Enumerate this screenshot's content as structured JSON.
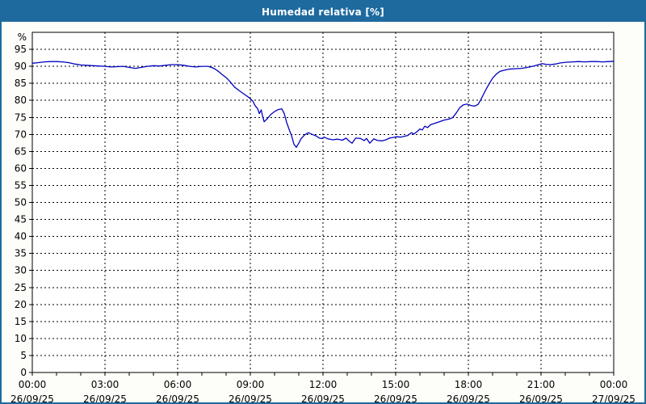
{
  "window": {
    "title": "Humedad relativa [%]"
  },
  "colors": {
    "header_bg": "#1e6a9f",
    "frame_border": "#1e6a9f",
    "panel_bg": "#fdfdf9",
    "plot_bg": "#ffffff",
    "grid": "#000000",
    "text": "#000000",
    "title_text": "#ffffff",
    "line": "#0000c0"
  },
  "chart_data": {
    "type": "line",
    "title": "Humedad relativa [%]",
    "ylabel": "%",
    "ylim": [
      0,
      100
    ],
    "ytick_step": 5,
    "grid": "dashed",
    "legend": "none",
    "x_hours_range": [
      0,
      24
    ],
    "yticks": [
      95,
      90,
      85,
      80,
      75,
      70,
      65,
      60,
      55,
      50,
      45,
      40,
      35,
      30,
      25,
      20,
      15,
      10,
      5,
      0
    ],
    "xticks": [
      {
        "hour": 0,
        "time": "00:00",
        "date": "26/09/25"
      },
      {
        "hour": 3,
        "time": "03:00",
        "date": "26/09/25"
      },
      {
        "hour": 6,
        "time": "06:00",
        "date": "26/09/25"
      },
      {
        "hour": 9,
        "time": "09:00",
        "date": "26/09/25"
      },
      {
        "hour": 12,
        "time": "12:00",
        "date": "26/09/25"
      },
      {
        "hour": 15,
        "time": "15:00",
        "date": "26/09/25"
      },
      {
        "hour": 18,
        "time": "18:00",
        "date": "26/09/25"
      },
      {
        "hour": 21,
        "time": "21:00",
        "date": "26/09/25"
      },
      {
        "hour": 24,
        "time": "00:00",
        "date": "27/09/25"
      }
    ],
    "series": [
      {
        "name": "Humedad relativa",
        "color": "#0000c0",
        "points": [
          [
            0,
            90.9
          ],
          [
            0.25,
            91.1
          ],
          [
            0.5,
            91.3
          ],
          [
            0.75,
            91.4
          ],
          [
            1,
            91.4
          ],
          [
            1.25,
            91.3
          ],
          [
            1.5,
            91.1
          ],
          [
            1.75,
            90.7
          ],
          [
            2,
            90.4
          ],
          [
            2.25,
            90.3
          ],
          [
            2.5,
            90.2
          ],
          [
            2.75,
            90.1
          ],
          [
            3,
            90
          ],
          [
            3.25,
            89.8
          ],
          [
            3.5,
            89.9
          ],
          [
            3.75,
            90
          ],
          [
            4,
            89.7
          ],
          [
            4.25,
            89.4
          ],
          [
            4.5,
            89.7
          ],
          [
            4.75,
            90
          ],
          [
            5,
            90.2
          ],
          [
            5.25,
            90.1
          ],
          [
            5.5,
            90.3
          ],
          [
            5.75,
            90.5
          ],
          [
            6,
            90.5
          ],
          [
            6.25,
            90.3
          ],
          [
            6.5,
            90
          ],
          [
            6.75,
            89.8
          ],
          [
            7,
            90
          ],
          [
            7.25,
            90
          ],
          [
            7.4,
            89.7
          ],
          [
            7.55,
            89.2
          ],
          [
            7.7,
            88.4
          ],
          [
            7.85,
            87.5
          ],
          [
            8,
            86.7
          ],
          [
            8.15,
            85.6
          ],
          [
            8.35,
            83.9
          ],
          [
            8.55,
            82.8
          ],
          [
            8.75,
            81.8
          ],
          [
            8.95,
            80.8
          ],
          [
            9.1,
            79.8
          ],
          [
            9.2,
            78.4
          ],
          [
            9.3,
            77.6
          ],
          [
            9.37,
            76.1
          ],
          [
            9.45,
            77.2
          ],
          [
            9.5,
            75.5
          ],
          [
            9.57,
            73.7
          ],
          [
            9.7,
            74.6
          ],
          [
            9.85,
            75.9
          ],
          [
            10,
            76.7
          ],
          [
            10.15,
            77.3
          ],
          [
            10.3,
            77.5
          ],
          [
            10.4,
            76.1
          ],
          [
            10.5,
            73.5
          ],
          [
            10.6,
            71.5
          ],
          [
            10.7,
            69.7
          ],
          [
            10.8,
            67.1
          ],
          [
            10.9,
            66.2
          ],
          [
            11,
            67.4
          ],
          [
            11.1,
            68.8
          ],
          [
            11.25,
            69.9
          ],
          [
            11.4,
            70.5
          ],
          [
            11.55,
            70
          ],
          [
            11.7,
            69.6
          ],
          [
            11.85,
            68.9
          ],
          [
            11.95,
            68.8
          ],
          [
            12.05,
            69.2
          ],
          [
            12.2,
            68.7
          ],
          [
            12.4,
            68.4
          ],
          [
            12.6,
            68.6
          ],
          [
            12.8,
            68.3
          ],
          [
            12.95,
            68.9
          ],
          [
            13.1,
            67.9
          ],
          [
            13.2,
            67.4
          ],
          [
            13.35,
            68.9
          ],
          [
            13.55,
            68.8
          ],
          [
            13.7,
            68.2
          ],
          [
            13.8,
            68.8
          ],
          [
            13.93,
            67.4
          ],
          [
            14.1,
            68.7
          ],
          [
            14.25,
            68.2
          ],
          [
            14.45,
            68.1
          ],
          [
            14.6,
            68.4
          ],
          [
            14.75,
            68.9
          ],
          [
            14.9,
            69.1
          ],
          [
            15.05,
            69.3
          ],
          [
            15.2,
            69.2
          ],
          [
            15.35,
            69.4
          ],
          [
            15.5,
            69.7
          ],
          [
            15.65,
            70.5
          ],
          [
            15.75,
            70.1
          ],
          [
            15.9,
            70.9
          ],
          [
            16,
            71.6
          ],
          [
            16.1,
            71.3
          ],
          [
            16.2,
            72.4
          ],
          [
            16.32,
            72
          ],
          [
            16.45,
            72.9
          ],
          [
            16.6,
            73.2
          ],
          [
            16.8,
            73.7
          ],
          [
            17,
            74.2
          ],
          [
            17.2,
            74.5
          ],
          [
            17.35,
            74.9
          ],
          [
            17.5,
            76.3
          ],
          [
            17.65,
            77.9
          ],
          [
            17.8,
            78.7
          ],
          [
            17.95,
            78.9
          ],
          [
            18.1,
            78.5
          ],
          [
            18.25,
            78.3
          ],
          [
            18.4,
            78.8
          ],
          [
            18.5,
            80
          ],
          [
            18.62,
            81.7
          ],
          [
            18.75,
            83.5
          ],
          [
            18.88,
            85.1
          ],
          [
            19,
            86.5
          ],
          [
            19.15,
            87.7
          ],
          [
            19.3,
            88.5
          ],
          [
            19.5,
            88.9
          ],
          [
            19.7,
            89.2
          ],
          [
            19.95,
            89.3
          ],
          [
            20.2,
            89.4
          ],
          [
            20.45,
            89.7
          ],
          [
            20.7,
            90.1
          ],
          [
            20.9,
            90.5
          ],
          [
            21.05,
            90.8
          ],
          [
            21.2,
            90.6
          ],
          [
            21.4,
            90.5
          ],
          [
            21.6,
            90.7
          ],
          [
            21.8,
            91
          ],
          [
            22.05,
            91.2
          ],
          [
            22.3,
            91.3
          ],
          [
            22.55,
            91.4
          ],
          [
            22.8,
            91.3
          ],
          [
            23.05,
            91.4
          ],
          [
            23.3,
            91.4
          ],
          [
            23.55,
            91.3
          ],
          [
            23.8,
            91.4
          ],
          [
            24,
            91.5
          ]
        ]
      }
    ]
  }
}
